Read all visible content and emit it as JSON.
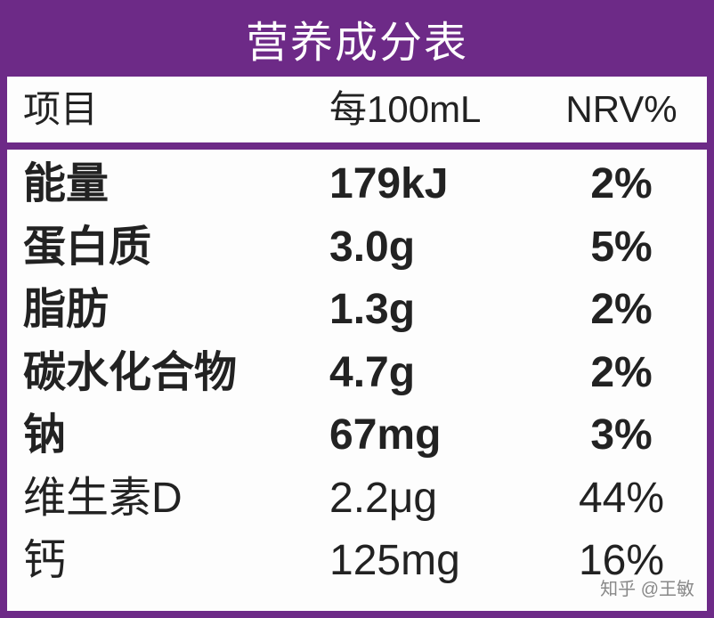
{
  "table": {
    "title": "营养成分表",
    "header": [
      "项目",
      "每100mL",
      "NRV%"
    ],
    "rows": [
      {
        "cells": [
          "能量",
          "179kJ",
          "2%"
        ],
        "bold": true
      },
      {
        "cells": [
          "蛋白质",
          "3.0g",
          "5%"
        ],
        "bold": true
      },
      {
        "cells": [
          "脂肪",
          "1.3g",
          "2%"
        ],
        "bold": true
      },
      {
        "cells": [
          "碳水化合物",
          "4.7g",
          "2%"
        ],
        "bold": true
      },
      {
        "cells": [
          "钠",
          "67mg",
          "3%"
        ],
        "bold": true
      },
      {
        "cells": [
          "维生素D",
          "2.2μg",
          "44%"
        ],
        "bold": false
      },
      {
        "cells": [
          "钙",
          "125mg",
          "16%"
        ],
        "bold": false
      }
    ]
  },
  "watermark": "知乎 @王敏"
}
